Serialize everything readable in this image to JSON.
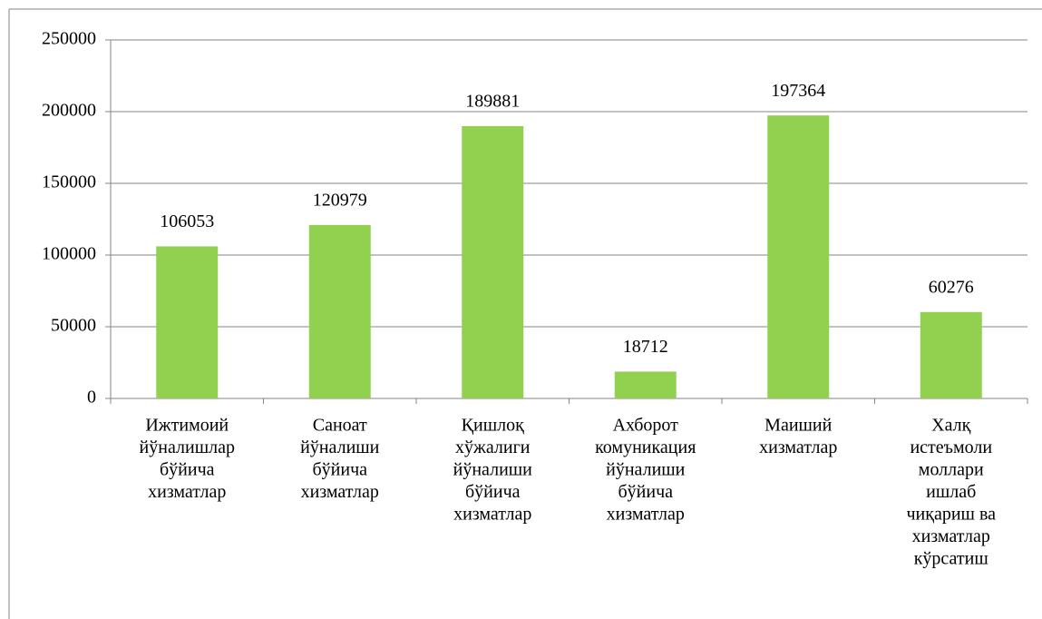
{
  "chart_data": {
    "type": "bar",
    "categories": [
      [
        "Ижтимоий",
        "йўналишлар",
        "бўйича",
        "хизматлар"
      ],
      [
        "Саноат",
        "йўналиши",
        "бўйича",
        "хизматлар"
      ],
      [
        "Қишлоқ",
        "хўжалиги",
        "йўналиши",
        "бўйича",
        "хизматлар"
      ],
      [
        "Ахборот",
        "комуникация",
        "йўналиши",
        "бўйича",
        "хизматлар"
      ],
      [
        "Маиший",
        "хизматлар"
      ],
      [
        "Халқ",
        "истеъмоли",
        "моллари",
        "ишлаб",
        "чиқариш ва",
        "хизматлар",
        "кўрсатиш"
      ]
    ],
    "values": [
      106053,
      120979,
      189881,
      18712,
      197364,
      60276
    ],
    "color": "#92d050",
    "ylim": [
      0,
      250000
    ],
    "yticks": [
      0,
      50000,
      100000,
      150000,
      200000,
      250000
    ],
    "grid": true
  }
}
